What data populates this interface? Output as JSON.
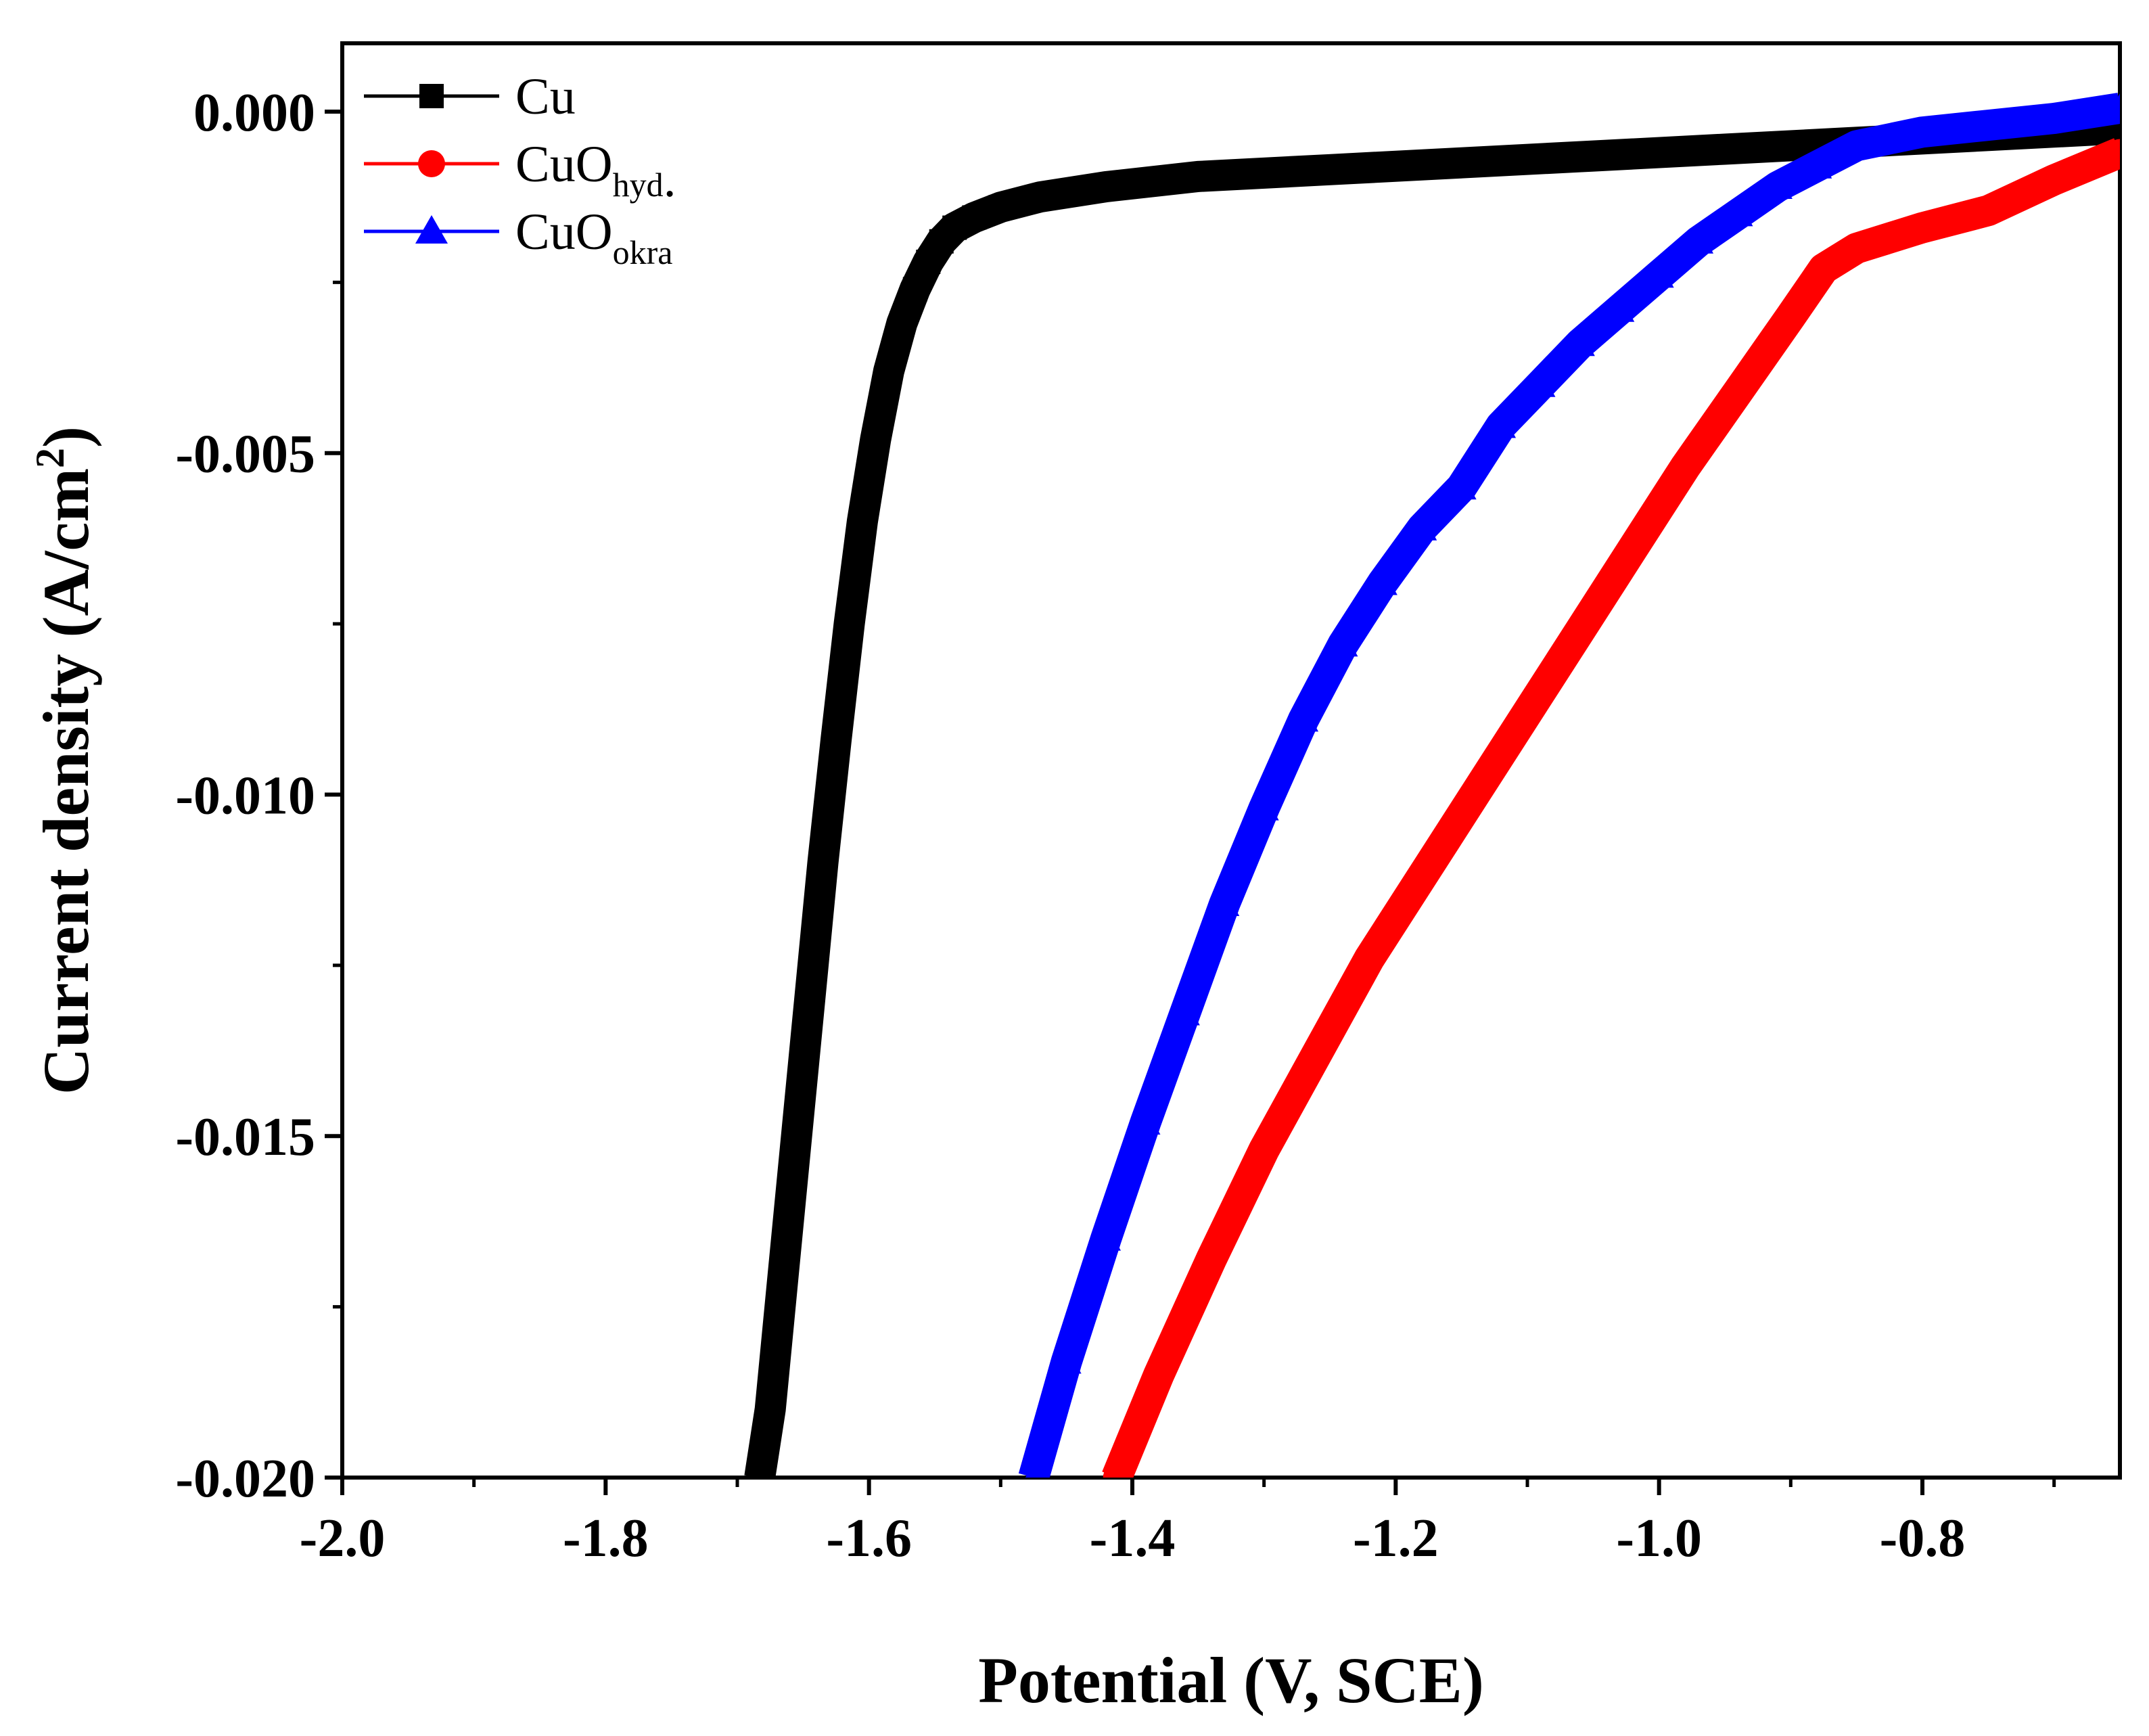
{
  "chart_data": {
    "type": "line",
    "title": "",
    "xlabel": "Potential (V, SCE)",
    "ylabel_main": "Current density (A/cm",
    "ylabel_sup": "2",
    "ylabel_end": ")",
    "xlim": [
      -2.0,
      -0.65
    ],
    "ylim": [
      -0.02,
      0.001
    ],
    "x_ticks": [
      -2.0,
      -1.8,
      -1.6,
      -1.4,
      -1.2,
      -1.0,
      -0.8
    ],
    "x_tick_labels": [
      "-2.0",
      "-1.8",
      "-1.6",
      "-1.4",
      "-1.2",
      "-1.0",
      "-0.8"
    ],
    "y_ticks": [
      0.0,
      -0.005,
      -0.01,
      -0.015,
      -0.02
    ],
    "y_tick_labels": [
      "0.000",
      "-0.005",
      "-0.010",
      "-0.015",
      "-0.020"
    ],
    "grid": false,
    "legend_position": "top-left",
    "series": [
      {
        "name": "Cu",
        "label_main": "Cu",
        "label_sub": "",
        "label_suffix": "",
        "color": "#000000",
        "marker": "square",
        "x": [
          -1.683,
          -1.675,
          -1.665,
          -1.655,
          -1.645,
          -1.635,
          -1.625,
          -1.615,
          -1.605,
          -1.595,
          -1.585,
          -1.575,
          -1.565,
          -1.555,
          -1.545,
          -1.535,
          -1.52,
          -1.5,
          -1.47,
          -1.42,
          -1.35,
          -1.25,
          -1.15,
          -1.05,
          -0.95,
          -0.85,
          -0.75,
          -0.65
        ],
        "y": [
          -0.02,
          -0.019,
          -0.017,
          -0.015,
          -0.013,
          -0.011,
          -0.0092,
          -0.0075,
          -0.006,
          -0.0048,
          -0.0038,
          -0.0031,
          -0.0026,
          -0.0022,
          -0.0019,
          -0.0017,
          -0.00155,
          -0.0014,
          -0.00125,
          -0.0011,
          -0.00095,
          -0.00085,
          -0.00075,
          -0.00065,
          -0.00055,
          -0.00045,
          -0.00035,
          -0.00025
        ]
      },
      {
        "name": "CuO hyd.",
        "label_main": "CuO",
        "label_sub": "hyd",
        "label_suffix": ".",
        "color": "#ff0000",
        "marker": "circle",
        "x": [
          -1.412,
          -1.38,
          -1.34,
          -1.3,
          -1.26,
          -1.22,
          -1.18,
          -1.14,
          -1.1,
          -1.06,
          -1.02,
          -0.98,
          -0.94,
          -0.9,
          -0.875,
          -0.85,
          -0.8,
          -0.75,
          -0.7,
          -0.65
        ],
        "y": [
          -0.02,
          -0.0185,
          -0.0168,
          -0.0152,
          -0.0138,
          -0.0124,
          -0.0112,
          -0.01,
          -0.0088,
          -0.0076,
          -0.0064,
          -0.0052,
          -0.0041,
          -0.003,
          -0.0023,
          -0.002,
          -0.0017,
          -0.00145,
          -0.001,
          -0.0006
        ]
      },
      {
        "name": "CuO okra",
        "label_main": "CuO",
        "label_sub": "okra",
        "label_suffix": "",
        "color": "#0000ff",
        "marker": "triangle",
        "x": [
          -1.475,
          -1.45,
          -1.42,
          -1.39,
          -1.36,
          -1.33,
          -1.3,
          -1.27,
          -1.24,
          -1.21,
          -1.18,
          -1.15,
          -1.12,
          -1.09,
          -1.06,
          -1.03,
          -1.0,
          -0.97,
          -0.94,
          -0.91,
          -0.88,
          -0.85,
          -0.8,
          -0.75,
          -0.7,
          -0.65
        ],
        "y": [
          -0.02,
          -0.0183,
          -0.0165,
          -0.0148,
          -0.0132,
          -0.0116,
          -0.0102,
          -0.0089,
          -0.0078,
          -0.0069,
          -0.0061,
          -0.0055,
          -0.0046,
          -0.004,
          -0.0034,
          -0.0029,
          -0.0024,
          -0.0019,
          -0.0015,
          -0.0011,
          -0.0008,
          -0.0005,
          -0.0003,
          -0.0002,
          -0.0001,
          5e-05
        ]
      }
    ]
  }
}
